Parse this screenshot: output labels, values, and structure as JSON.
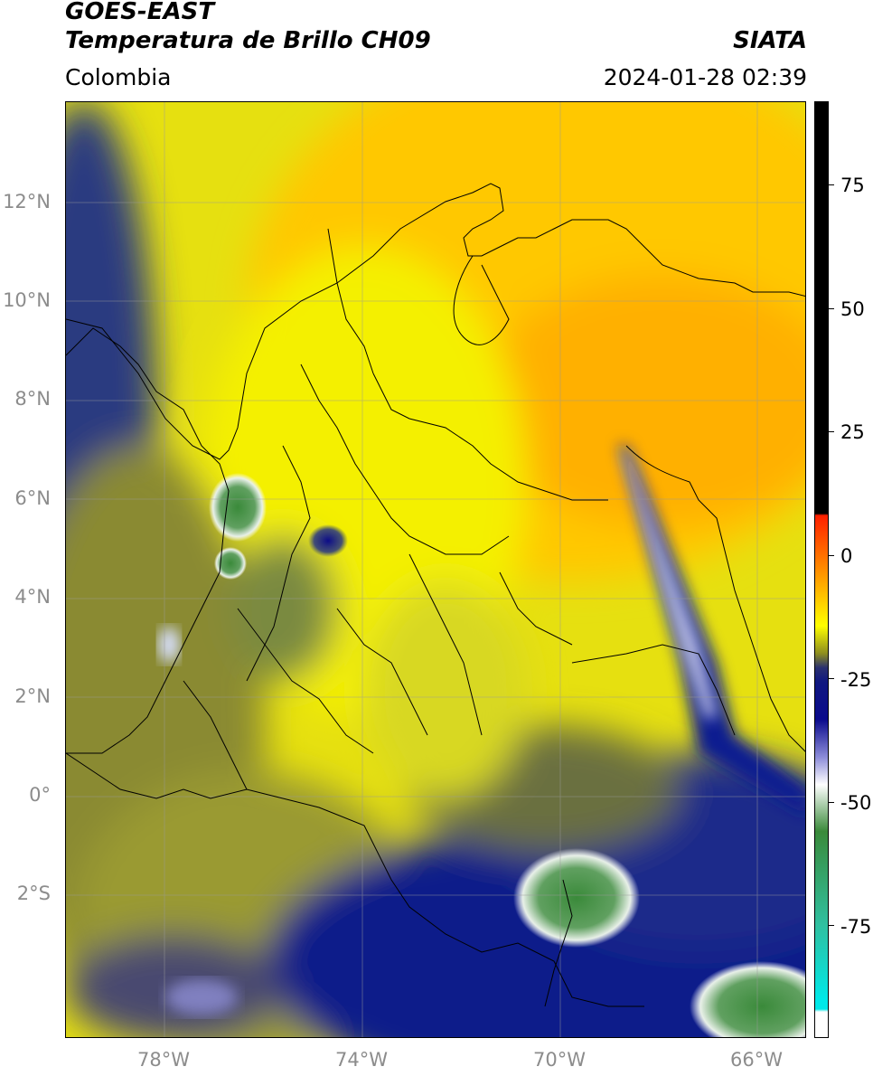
{
  "header": {
    "satellite": "GOES-EAST",
    "product": "Temperatura de Brillo CH09",
    "region": "Colombia",
    "agency": "SIATA",
    "datetime": "2024-01-28 02:39"
  },
  "map": {
    "lon_range": [
      -80,
      -65
    ],
    "lat_range": [
      -4.8,
      14.1
    ],
    "lat_ticks": [
      {
        "value": 12,
        "label": "12°N"
      },
      {
        "value": 10,
        "label": "10°N"
      },
      {
        "value": 8,
        "label": "8°N"
      },
      {
        "value": 6,
        "label": "6°N"
      },
      {
        "value": 4,
        "label": "4°N"
      },
      {
        "value": 2,
        "label": "2°N"
      },
      {
        "value": 0,
        "label": "0°"
      },
      {
        "value": -2,
        "label": "2°S"
      }
    ],
    "lon_ticks": [
      {
        "value": -78,
        "label": "78°W"
      },
      {
        "value": -74,
        "label": "74°W"
      },
      {
        "value": -70,
        "label": "70°W"
      },
      {
        "value": -66,
        "label": "66°W"
      }
    ],
    "gridlines": true
  },
  "colorbar": {
    "range": [
      -100,
      90
    ],
    "ticks": [
      {
        "value": 75,
        "label": "75"
      },
      {
        "value": 50,
        "label": "50"
      },
      {
        "value": 25,
        "label": "25"
      },
      {
        "value": 0,
        "label": "0"
      },
      {
        "value": -25,
        "label": "-25"
      },
      {
        "value": -50,
        "label": "-50"
      },
      {
        "value": -75,
        "label": "-75"
      }
    ],
    "colors": {
      "black": "#000000",
      "red": "#ff2000",
      "orange": "#ffa000",
      "yellow": "#ffff00",
      "olive": "#8c8c20",
      "darkblue": "#101880",
      "navy": "#0a0a8c",
      "white": "#ffffff",
      "green": "#3a8a3a",
      "teal": "#30c0a0",
      "cyan": "#00e8e8"
    }
  }
}
